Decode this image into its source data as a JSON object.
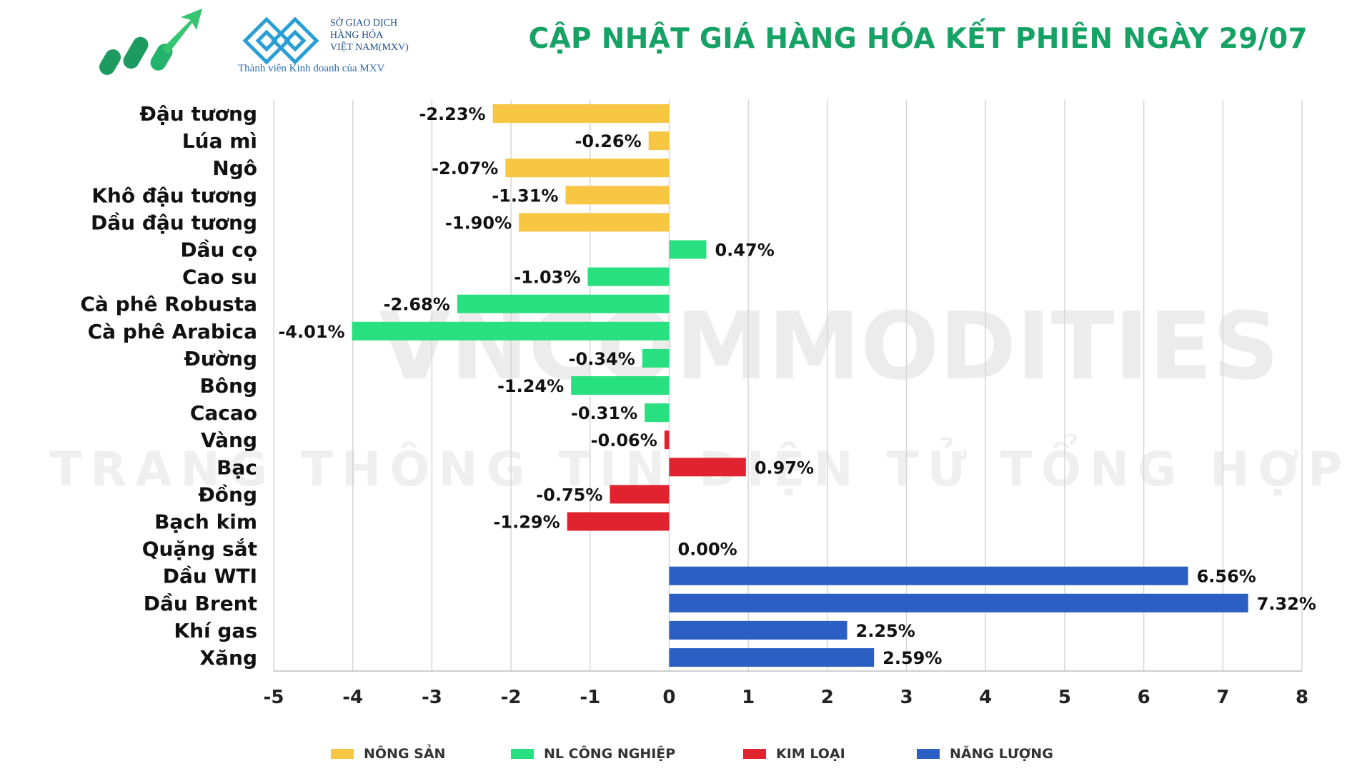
{
  "header": {
    "title": "CẬP NHẬT GIÁ HÀNG HÓA KẾT PHIÊN NGÀY 29/07",
    "mxv_name_lines": [
      "SỞ GIAO DỊCH",
      "HÀNG HÓA",
      "VIỆT NAM(MXV)"
    ],
    "mxv_tagline": "Thành viên Kinh doanh của MXV",
    "watermark_main": "VNCOMMODITIES",
    "watermark_sub": "TRANG THÔNG TIN ĐIỆN TỬ TỔNG HỢP"
  },
  "colors": {
    "nong_san": "#f7c642",
    "nl_cong_nghiep": "#28e07f",
    "kim_loai": "#e0232e",
    "nang_luong": "#2b5fc4",
    "title": "#17a265",
    "grid": "#d6d6d6"
  },
  "chart_data": {
    "type": "bar",
    "orientation": "horizontal",
    "title": "CẬP NHẬT GIÁ HÀNG HÓA KẾT PHIÊN NGÀY 29/07",
    "xlim": [
      -5,
      8
    ],
    "xticks": [
      -5,
      -4,
      -3,
      -2,
      -1,
      0,
      1,
      2,
      3,
      4,
      5,
      6,
      7,
      8
    ],
    "grid": "vertical",
    "legend_position": "bottom",
    "categories": [
      "Đậu tương",
      "Lúa mì",
      "Ngô",
      "Khô đậu tương",
      "Dầu đậu tương",
      "Dầu cọ",
      "Cao su",
      "Cà phê Robusta",
      "Cà phê Arabica",
      "Đường",
      "Bông",
      "Cacao",
      "Vàng",
      "Bạc",
      "Đồng",
      "Bạch kim",
      "Quặng sắt",
      "Dầu WTI",
      "Dầu Brent",
      "Khí gas",
      "Xăng"
    ],
    "values": [
      -2.23,
      -0.26,
      -2.07,
      -1.31,
      -1.9,
      0.47,
      -1.03,
      -2.68,
      -4.01,
      -0.34,
      -1.24,
      -0.31,
      -0.06,
      0.97,
      -0.75,
      -1.29,
      0.0,
      6.56,
      7.32,
      2.25,
      2.59
    ],
    "data_labels": [
      "-2.23%",
      "-0.26%",
      "-2.07%",
      "-1.31%",
      "-1.90%",
      "0.47%",
      "-1.03%",
      "-2.68%",
      "-4.01%",
      "-0.34%",
      "-1.24%",
      "-0.31%",
      "-0.06%",
      "0.97%",
      "-0.75%",
      "-1.29%",
      "0.00%",
      "6.56%",
      "7.32%",
      "2.25%",
      "2.59%"
    ],
    "groups": [
      "nong_san",
      "nong_san",
      "nong_san",
      "nong_san",
      "nong_san",
      "nl_cong_nghiep",
      "nl_cong_nghiep",
      "nl_cong_nghiep",
      "nl_cong_nghiep",
      "nl_cong_nghiep",
      "nl_cong_nghiep",
      "nl_cong_nghiep",
      "kim_loai",
      "kim_loai",
      "kim_loai",
      "kim_loai",
      "kim_loai",
      "nang_luong",
      "nang_luong",
      "nang_luong",
      "nang_luong"
    ],
    "legend": [
      {
        "key": "nong_san",
        "label": "NÔNG SẢN"
      },
      {
        "key": "nl_cong_nghiep",
        "label": "NL CÔNG NGHIỆP"
      },
      {
        "key": "kim_loai",
        "label": "KIM LOẠI"
      },
      {
        "key": "nang_luong",
        "label": "NĂNG LƯỢNG"
      }
    ]
  }
}
